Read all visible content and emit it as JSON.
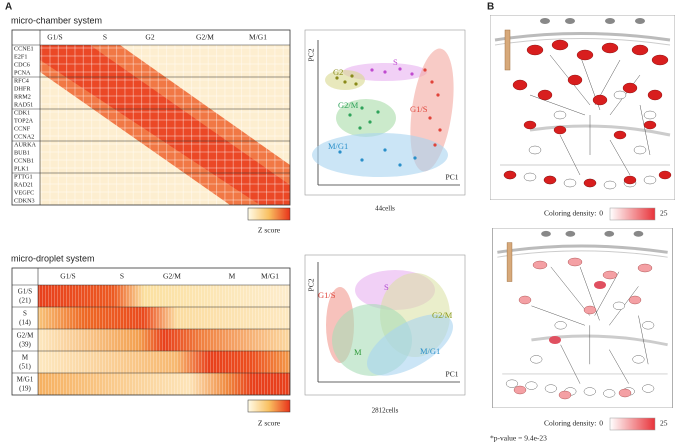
{
  "panel_labels": [
    "A",
    "B"
  ],
  "micro_chamber": {
    "title": "micro-chamber system",
    "phases": [
      "G1/S",
      "S",
      "G2",
      "G2/M",
      "M/G1"
    ],
    "genes": [
      "CCNE1",
      "E2F1",
      "CDC6",
      "PCNA",
      "RFC4",
      "DHFR",
      "RRM2",
      "RAD51",
      "CDK1",
      "TOP2A",
      "CCNF",
      "CCNA2",
      "AURKA",
      "BUB1",
      "CCNB1",
      "PLK1",
      "PTTG1",
      "RAD21",
      "VEGFC",
      "CDKN3"
    ],
    "legend": "Z score",
    "pca": {
      "x_label": "PC1",
      "y_label": "PC2",
      "groups": [
        "S",
        "G2",
        "G2/M",
        "G1/S",
        "M/G1"
      ],
      "cells": "44cells"
    }
  },
  "micro_droplet": {
    "title": "micro-droplet system",
    "phases": [
      "G1/S",
      "S",
      "G2/M",
      "M",
      "M/G1"
    ],
    "rows": [
      {
        "phase": "G1/S",
        "count": "(21)"
      },
      {
        "phase": "S",
        "count": "(14)"
      },
      {
        "phase": "G2/M",
        "count": "(39)"
      },
      {
        "phase": "M",
        "count": "(51)"
      },
      {
        "phase": "M/G1",
        "count": "(19)"
      }
    ],
    "legend": "Z score",
    "pca": {
      "x_label": "PC1",
      "y_label": "PC2",
      "groups": [
        "S",
        "G1/S",
        "G2/M",
        "M",
        "M/G1"
      ],
      "cells": "2812cells"
    }
  },
  "pathway": {
    "legend_label": "Coloring density:",
    "legend_min": 0,
    "legend_max": 25,
    "p_value": "*p-value = 9.4e-23"
  }
}
